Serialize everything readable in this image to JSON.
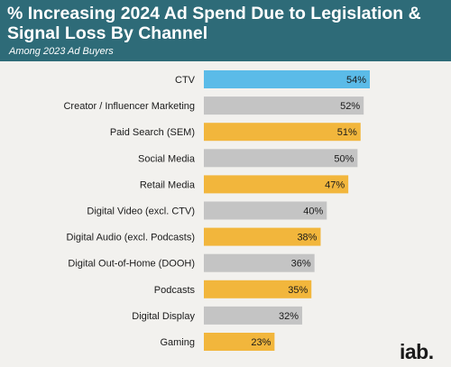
{
  "header": {
    "title": "% Increasing 2024 Ad Spend Due to Legislation & Signal Loss By Channel",
    "subtitle": "Among 2023 Ad Buyers"
  },
  "logo": "iab.",
  "colors": {
    "header_bg": "#2e6b78",
    "ctv_bar": "#5bbbe8",
    "gray_bar": "#c4c4c4",
    "gold_bar": "#f2b63c",
    "page_bg": "#f2f1ee"
  },
  "chart_data": {
    "type": "bar",
    "orientation": "horizontal",
    "categories": [
      "CTV",
      "Creator / Influencer Marketing",
      "Paid Search (SEM)",
      "Social Media",
      "Retail Media",
      "Digital Video (excl. CTV)",
      "Digital Audio (excl. Podcasts)",
      "Digital Out-of-Home (DOOH)",
      "Podcasts",
      "Digital Display",
      "Gaming"
    ],
    "values": [
      54,
      52,
      51,
      50,
      47,
      40,
      38,
      36,
      35,
      32,
      23
    ],
    "value_labels": [
      "54%",
      "52%",
      "51%",
      "50%",
      "47%",
      "40%",
      "38%",
      "36%",
      "35%",
      "32%",
      "23%"
    ],
    "bar_colors": [
      "ctv",
      "gray",
      "gold",
      "gray",
      "gold",
      "gray",
      "gold",
      "gray",
      "gold",
      "gray",
      "gold"
    ],
    "title": "% Increasing 2024 Ad Spend Due to Legislation & Signal Loss By Channel",
    "subtitle": "Among 2023 Ad Buyers",
    "xlim": [
      0,
      54
    ],
    "grid": false,
    "legend": "none"
  }
}
